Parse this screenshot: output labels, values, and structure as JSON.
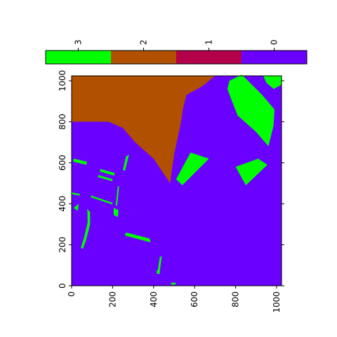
{
  "chart_data": {
    "type": "heatmap",
    "title": "",
    "xlabel": "",
    "ylabel": "",
    "xlim": [
      0,
      1024
    ],
    "ylim": [
      0,
      1024
    ],
    "x_ticks": [
      "0",
      "200",
      "400",
      "600",
      "800",
      "1000"
    ],
    "y_ticks": [
      "0",
      "200",
      "400",
      "600",
      "800",
      "1000"
    ],
    "colorbar": {
      "placement": "top",
      "tick_labels": [
        "3",
        "2",
        "1",
        "0"
      ],
      "classes": [
        {
          "value": 3,
          "color": "#00ff00"
        },
        {
          "value": 2,
          "color": "#b15000"
        },
        {
          "value": 1,
          "color": "#b4004b"
        },
        {
          "value": 0,
          "color": "#6a00ff"
        }
      ]
    },
    "background_class": 0,
    "regions": [
      {
        "class": 2,
        "points": [
          [
            0,
            1024
          ],
          [
            700,
            1024
          ],
          [
            640,
            975
          ],
          [
            560,
            930
          ],
          [
            545,
            870
          ],
          [
            530,
            780
          ],
          [
            500,
            640
          ],
          [
            480,
            500
          ],
          [
            440,
            560
          ],
          [
            400,
            620
          ],
          [
            310,
            700
          ],
          [
            250,
            770
          ],
          [
            180,
            800
          ],
          [
            0,
            800
          ]
        ]
      },
      {
        "class": 3,
        "points": [
          [
            770,
            1000
          ],
          [
            830,
            1030
          ],
          [
            930,
            930
          ],
          [
            990,
            860
          ],
          [
            985,
            780
          ],
          [
            960,
            680
          ],
          [
            900,
            750
          ],
          [
            810,
            830
          ],
          [
            790,
            880
          ],
          [
            760,
            960
          ]
        ]
      },
      {
        "class": 3,
        "points": [
          [
            935,
            1024
          ],
          [
            1024,
            1024
          ],
          [
            1024,
            980
          ],
          [
            985,
            960
          ],
          [
            950,
            990
          ]
        ]
      },
      {
        "class": 3,
        "points": [
          [
            580,
            650
          ],
          [
            670,
            620
          ],
          [
            540,
            490
          ],
          [
            510,
            520
          ]
        ]
      },
      {
        "class": 3,
        "points": [
          [
            800,
            580
          ],
          [
            910,
            620
          ],
          [
            955,
            590
          ],
          [
            850,
            490
          ]
        ]
      },
      {
        "class": 3,
        "points": [
          [
            10,
            620
          ],
          [
            75,
            605
          ],
          [
            72,
            590
          ],
          [
            8,
            605
          ]
        ]
      },
      {
        "class": 3,
        "points": [
          [
            140,
            570
          ],
          [
            210,
            550
          ],
          [
            208,
            537
          ],
          [
            138,
            557
          ]
        ]
      },
      {
        "class": 3,
        "points": [
          [
            130,
            540
          ],
          [
            200,
            520
          ],
          [
            198,
            510
          ],
          [
            128,
            530
          ]
        ]
      },
      {
        "class": 3,
        "points": [
          [
            265,
            630
          ],
          [
            280,
            640
          ],
          [
            260,
            560
          ],
          [
            250,
            565
          ]
        ]
      },
      {
        "class": 3,
        "points": [
          [
            2,
            455
          ],
          [
            40,
            448
          ],
          [
            40,
            440
          ],
          [
            2,
            446
          ]
        ]
      },
      {
        "class": 3,
        "points": [
          [
            95,
            440
          ],
          [
            200,
            405
          ],
          [
            198,
            397
          ],
          [
            93,
            432
          ]
        ]
      },
      {
        "class": 3,
        "points": [
          [
            225,
            485
          ],
          [
            232,
            485
          ],
          [
            222,
            390
          ],
          [
            215,
            392
          ]
        ]
      },
      {
        "class": 3,
        "points": [
          [
            205,
            380
          ],
          [
            228,
            370
          ],
          [
            226,
            335
          ],
          [
            205,
            345
          ]
        ]
      },
      {
        "class": 3,
        "points": [
          [
            10,
            380
          ],
          [
            35,
            400
          ],
          [
            30,
            365
          ]
        ]
      },
      {
        "class": 3,
        "points": [
          [
            75,
            375
          ],
          [
            90,
            360
          ],
          [
            90,
            300
          ],
          [
            70,
            220
          ],
          [
            55,
            180
          ],
          [
            45,
            185
          ],
          [
            62,
            240
          ],
          [
            78,
            310
          ],
          [
            77,
            360
          ]
        ]
      },
      {
        "class": 3,
        "points": [
          [
            265,
            260
          ],
          [
            380,
            230
          ],
          [
            385,
            212
          ],
          [
            260,
            245
          ]
        ]
      },
      {
        "class": 3,
        "points": [
          [
            430,
            140
          ],
          [
            440,
            145
          ],
          [
            430,
            70
          ],
          [
            420,
            72
          ]
        ]
      },
      {
        "class": 3,
        "points": [
          [
            415,
            75
          ],
          [
            430,
            75
          ],
          [
            430,
            58
          ],
          [
            415,
            58
          ]
        ]
      },
      {
        "class": 3,
        "points": [
          [
            485,
            15
          ],
          [
            510,
            15
          ],
          [
            505,
            5
          ],
          [
            485,
            5
          ]
        ]
      }
    ]
  }
}
